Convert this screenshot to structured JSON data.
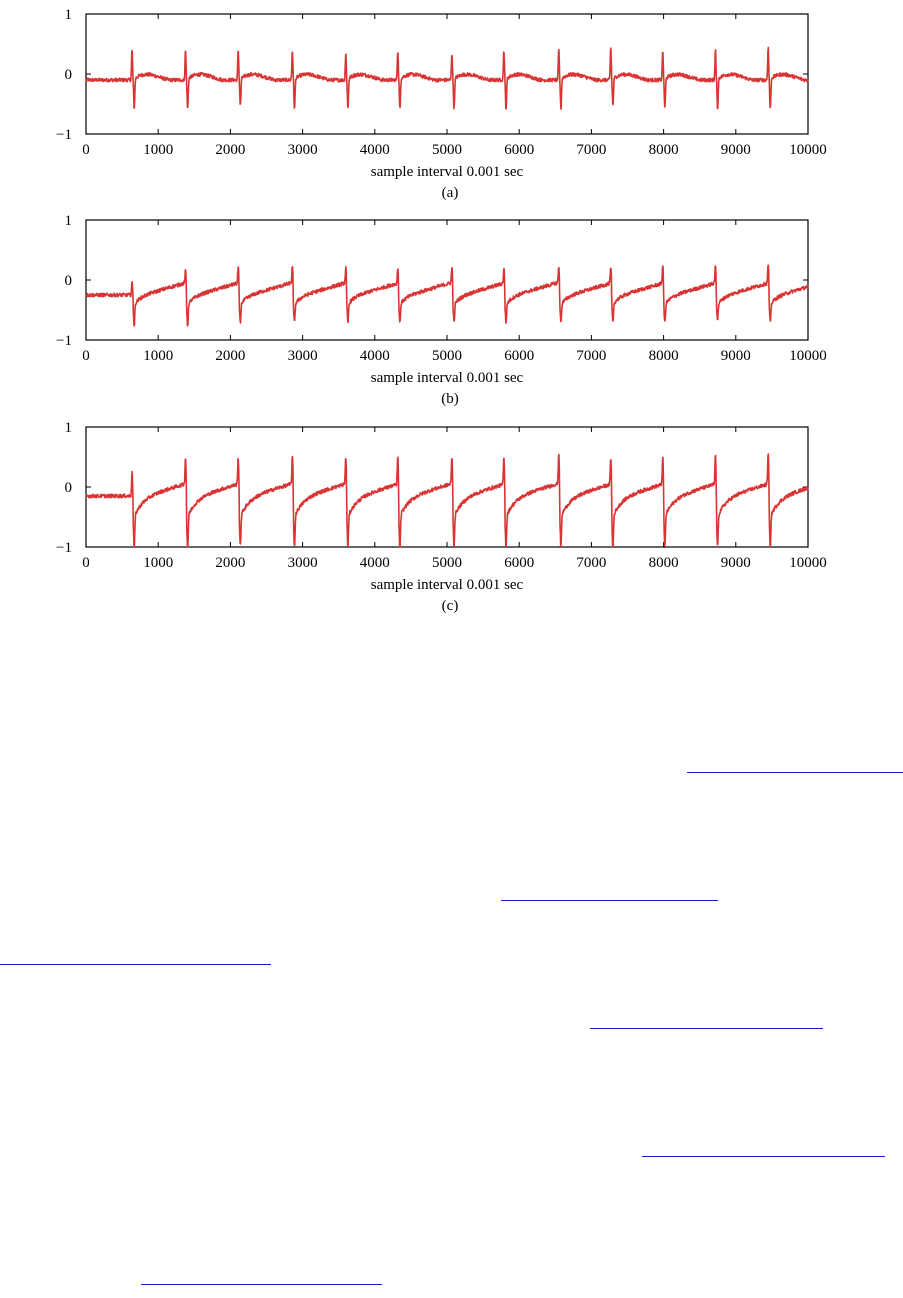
{
  "chart_data": [
    {
      "type": "line",
      "panel_label": "(a)",
      "xlabel": "sample interval 0.001 sec",
      "ylabel": "",
      "xlim": [
        0,
        10000
      ],
      "ylim": [
        -1,
        1
      ],
      "x_ticks": [
        0,
        1000,
        2000,
        3000,
        4000,
        5000,
        6000,
        7000,
        8000,
        9000,
        10000
      ],
      "y_ticks": [
        -1,
        0,
        1
      ],
      "y_tick_labels": [
        "−1",
        "0",
        "1"
      ],
      "grid": false,
      "color": "#d93434",
      "baseline": -0.1,
      "beat_positions": [
        650,
        1390,
        2120,
        2870,
        3610,
        4330,
        5080,
        5800,
        6560,
        7280,
        8000,
        8730,
        9460
      ],
      "beat_peaks": [
        0.4,
        0.4,
        0.4,
        0.4,
        0.35,
        0.4,
        0.35,
        0.4,
        0.4,
        0.45,
        0.4,
        0.4,
        0.45
      ],
      "beat_troughs": [
        -0.6,
        -0.6,
        -0.55,
        -0.6,
        -0.6,
        -0.6,
        -0.6,
        -0.6,
        -0.6,
        -0.55,
        -0.6,
        -0.6,
        -0.6
      ]
    },
    {
      "type": "line",
      "panel_label": "(b)",
      "xlabel": "sample interval 0.001 sec",
      "ylabel": "",
      "xlim": [
        0,
        10000
      ],
      "ylim": [
        -1,
        1
      ],
      "x_ticks": [
        0,
        1000,
        2000,
        3000,
        4000,
        5000,
        6000,
        7000,
        8000,
        9000,
        10000
      ],
      "y_ticks": [
        -1,
        0,
        1
      ],
      "y_tick_labels": [
        "−1",
        "0",
        "1"
      ],
      "grid": false,
      "color": "#d93434",
      "baseline": -0.3,
      "beat_positions": [
        650,
        1390,
        2120,
        2870,
        3610,
        4330,
        5080,
        5800,
        6560,
        7280,
        8000,
        8730,
        9460
      ],
      "beat_peaks": [
        -0.1,
        -0.1,
        -0.05,
        -0.05,
        -0.05,
        -0.05,
        -0.05,
        -0.05,
        -0.05,
        -0.05,
        0.0,
        0.0,
        0.0
      ],
      "beat_troughs": [
        -0.65,
        -0.65,
        -0.6,
        -0.6,
        -0.6,
        -0.6,
        -0.6,
        -0.6,
        -0.6,
        -0.6,
        -0.6,
        -0.55,
        -0.6
      ]
    },
    {
      "type": "line",
      "panel_label": "(c)",
      "xlabel": "sample interval 0.001 sec",
      "ylabel": "",
      "xlim": [
        0,
        10000
      ],
      "ylim": [
        -1,
        1
      ],
      "x_ticks": [
        0,
        1000,
        2000,
        3000,
        4000,
        5000,
        6000,
        7000,
        8000,
        9000,
        10000
      ],
      "y_ticks": [
        -1,
        0,
        1
      ],
      "y_tick_labels": [
        "−1",
        "0",
        "1"
      ],
      "grid": false,
      "color": "#d93434",
      "baseline": -0.2,
      "beat_positions": [
        650,
        1390,
        2120,
        2870,
        3610,
        4330,
        5080,
        5800,
        6560,
        7280,
        8000,
        8730,
        9460
      ],
      "beat_peaks": [
        0.2,
        0.25,
        0.25,
        0.25,
        0.25,
        0.25,
        0.25,
        0.25,
        0.3,
        0.25,
        0.25,
        0.3,
        0.3
      ],
      "beat_troughs": [
        -0.75,
        -0.75,
        -0.7,
        -0.7,
        -0.7,
        -0.75,
        -0.7,
        -0.7,
        -0.7,
        -0.75,
        -0.7,
        -0.7,
        -0.7
      ]
    }
  ],
  "links": [
    {
      "name": "link-1"
    },
    {
      "name": "link-2"
    },
    {
      "name": "link-3"
    },
    {
      "name": "link-4"
    },
    {
      "name": "link-5"
    },
    {
      "name": "link-6"
    }
  ]
}
